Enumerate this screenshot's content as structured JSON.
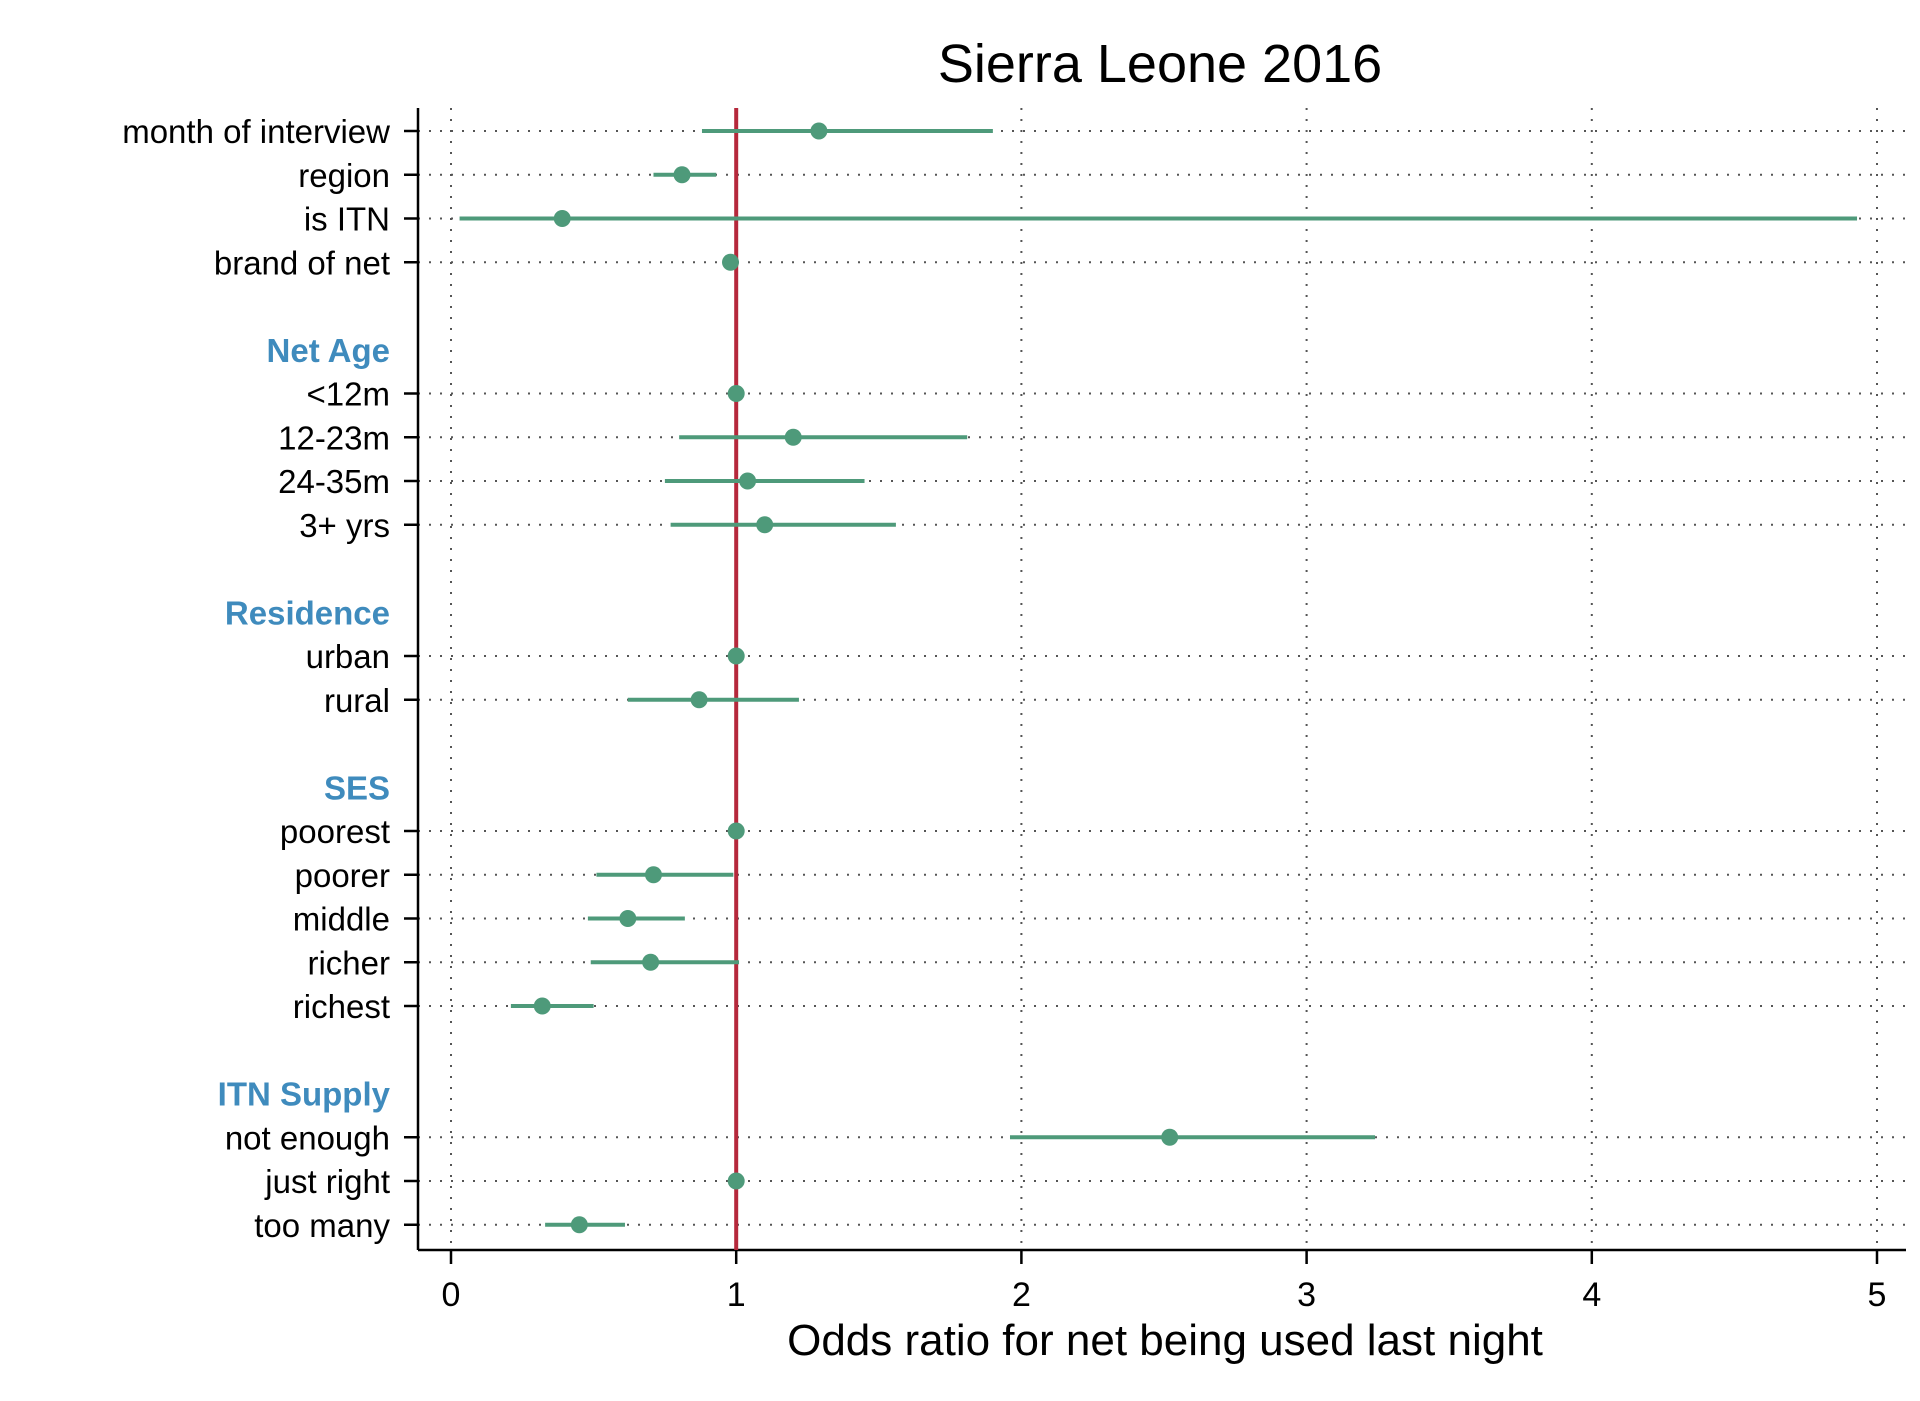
{
  "chart_data": {
    "type": "forest",
    "title": "Sierra Leone 2016",
    "xlabel": "Odds ratio for net being used last night",
    "xlim": [
      0,
      5
    ],
    "xticks": [
      "0",
      "1",
      "2",
      "3",
      "4",
      "5"
    ],
    "xtick_values": [
      0,
      1,
      2,
      3,
      4,
      5
    ],
    "reference_line": 1,
    "grid": "dotted",
    "colors": {
      "marker": "#4e9a7a",
      "reference": "#b5283b",
      "header": "#3f8bbd",
      "text": "#000000"
    },
    "rows": [
      {
        "kind": "item",
        "label": "month of interview",
        "or": 1.29,
        "lo": 0.88,
        "hi": 1.9
      },
      {
        "kind": "item",
        "label": "region",
        "or": 0.81,
        "lo": 0.71,
        "hi": 0.93
      },
      {
        "kind": "item",
        "label": "is ITN",
        "or": 0.39,
        "lo": 0.03,
        "hi": 4.93
      },
      {
        "kind": "item",
        "label": "brand of net",
        "or": 0.98,
        "lo": 0.97,
        "hi": 0.99
      },
      {
        "kind": "blank"
      },
      {
        "kind": "header",
        "label": "Net Age"
      },
      {
        "kind": "item",
        "label": "<12m",
        "or": 1.0,
        "lo": 1.0,
        "hi": 1.0
      },
      {
        "kind": "item",
        "label": "12-23m",
        "or": 1.2,
        "lo": 0.8,
        "hi": 1.81
      },
      {
        "kind": "item",
        "label": "24-35m",
        "or": 1.04,
        "lo": 0.75,
        "hi": 1.45
      },
      {
        "kind": "item",
        "label": "3+ yrs",
        "or": 1.1,
        "lo": 0.77,
        "hi": 1.56
      },
      {
        "kind": "blank"
      },
      {
        "kind": "header",
        "label": "Residence"
      },
      {
        "kind": "item",
        "label": "urban",
        "or": 1.0,
        "lo": 1.0,
        "hi": 1.0
      },
      {
        "kind": "item",
        "label": "rural",
        "or": 0.87,
        "lo": 0.62,
        "hi": 1.22
      },
      {
        "kind": "blank"
      },
      {
        "kind": "header",
        "label": "SES"
      },
      {
        "kind": "item",
        "label": "poorest",
        "or": 1.0,
        "lo": 1.0,
        "hi": 1.0
      },
      {
        "kind": "item",
        "label": "poorer",
        "or": 0.71,
        "lo": 0.51,
        "hi": 0.99
      },
      {
        "kind": "item",
        "label": "middle",
        "or": 0.62,
        "lo": 0.48,
        "hi": 0.82
      },
      {
        "kind": "item",
        "label": "richer",
        "or": 0.7,
        "lo": 0.49,
        "hi": 1.01
      },
      {
        "kind": "item",
        "label": "richest",
        "or": 0.32,
        "lo": 0.21,
        "hi": 0.5
      },
      {
        "kind": "blank"
      },
      {
        "kind": "header",
        "label": "ITN Supply"
      },
      {
        "kind": "item",
        "label": "not enough",
        "or": 2.52,
        "lo": 1.96,
        "hi": 3.24
      },
      {
        "kind": "item",
        "label": "just right",
        "or": 1.0,
        "lo": 1.0,
        "hi": 1.0
      },
      {
        "kind": "item",
        "label": "too many",
        "or": 0.45,
        "lo": 0.33,
        "hi": 0.61
      }
    ]
  }
}
